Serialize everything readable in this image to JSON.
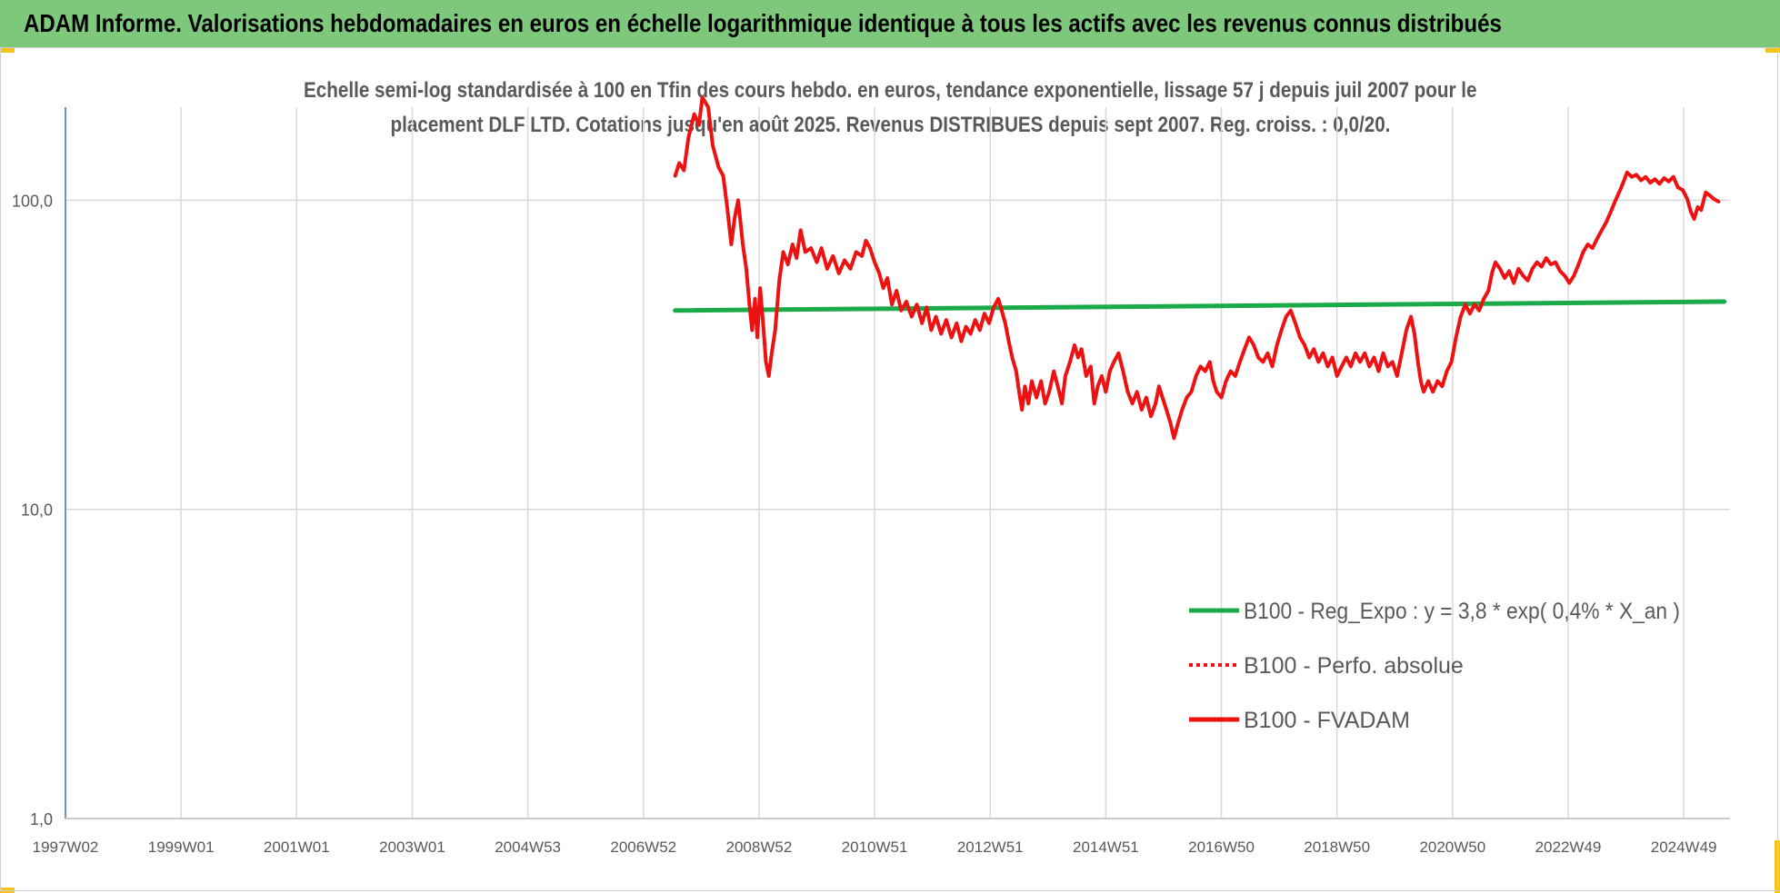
{
  "banner": {
    "title": "ADAM Informe. Valorisations hebdomadaires en euros en échelle logarithmique identique à tous les actifs avec les revenus connus distribués"
  },
  "colors": {
    "banner_bg": "#7dc87a",
    "corner_marks": "#f2c419",
    "fvadam_line": "#ee1111",
    "regression_line": "#1aaa4a",
    "axis_text": "#595959",
    "gridline": "#d9d9d9",
    "y_axis_line": "#4472c4"
  },
  "chart_data": {
    "type": "line",
    "title": "Echelle semi-log standardisée à 100 en Tfin des cours hebdo. en euros, tendance exponentielle, lissage 57 j depuis juil 2007 pour le",
    "subtitle": "placement DLF LTD. Cotations jusqu'en août 2025. Revenus DISTRIBUES depuis sept 2007. Reg. croiss. : 0,0/20.",
    "y_scale": "log",
    "ylim": [
      1,
      200
    ],
    "y_ticks": [
      {
        "value": 1,
        "label": "1,0"
      },
      {
        "value": 10,
        "label": "10,0"
      },
      {
        "value": 100,
        "label": "100,0"
      }
    ],
    "xlim": [
      1997.0,
      2025.8
    ],
    "x_ticks": [
      {
        "value": 1997.0,
        "label": "1997W02"
      },
      {
        "value": 1999.0,
        "label": "1999W01"
      },
      {
        "value": 2001.0,
        "label": "2001W01"
      },
      {
        "value": 2003.0,
        "label": "2003W01"
      },
      {
        "value": 2005.0,
        "label": "2004W53"
      },
      {
        "value": 2007.0,
        "label": "2006W52"
      },
      {
        "value": 2009.0,
        "label": "2008W52"
      },
      {
        "value": 2011.0,
        "label": "2010W51"
      },
      {
        "value": 2013.0,
        "label": "2012W51"
      },
      {
        "value": 2015.0,
        "label": "2014W51"
      },
      {
        "value": 2017.0,
        "label": "2016W50"
      },
      {
        "value": 2019.0,
        "label": "2018W50"
      },
      {
        "value": 2021.0,
        "label": "2020W50"
      },
      {
        "value": 2023.0,
        "label": "2022W49"
      },
      {
        "value": 2025.0,
        "label": "2024W49"
      }
    ],
    "legend_position": "right",
    "series": [
      {
        "name": "B100 - Reg_Expo : y = 3,8 * exp( 0,4% *  X_an )",
        "style": "solid",
        "points": [
          [
            2007.55,
            44
          ],
          [
            2025.7,
            47
          ]
        ]
      },
      {
        "name": "B100 - Perfo. absolue",
        "style": "dotted",
        "points": []
      },
      {
        "name": "B100 - FVADAM",
        "style": "solid",
        "points": [
          [
            2007.55,
            120
          ],
          [
            2007.62,
            132
          ],
          [
            2007.7,
            125
          ],
          [
            2007.78,
            160
          ],
          [
            2007.88,
            190
          ],
          [
            2007.96,
            175
          ],
          [
            2008.02,
            215
          ],
          [
            2008.12,
            200
          ],
          [
            2008.2,
            150
          ],
          [
            2008.3,
            128
          ],
          [
            2008.38,
            120
          ],
          [
            2008.45,
            95
          ],
          [
            2008.52,
            72
          ],
          [
            2008.58,
            88
          ],
          [
            2008.64,
            100
          ],
          [
            2008.72,
            72
          ],
          [
            2008.78,
            60
          ],
          [
            2008.84,
            45
          ],
          [
            2008.88,
            38
          ],
          [
            2008.93,
            48
          ],
          [
            2008.97,
            36
          ],
          [
            2009.02,
            52
          ],
          [
            2009.07,
            40
          ],
          [
            2009.12,
            30
          ],
          [
            2009.17,
            27
          ],
          [
            2009.22,
            32
          ],
          [
            2009.28,
            38
          ],
          [
            2009.35,
            55
          ],
          [
            2009.42,
            68
          ],
          [
            2009.5,
            62
          ],
          [
            2009.58,
            72
          ],
          [
            2009.65,
            65
          ],
          [
            2009.72,
            80
          ],
          [
            2009.8,
            68
          ],
          [
            2009.9,
            70
          ],
          [
            2010.0,
            63
          ],
          [
            2010.08,
            70
          ],
          [
            2010.18,
            60
          ],
          [
            2010.28,
            66
          ],
          [
            2010.38,
            58
          ],
          [
            2010.48,
            64
          ],
          [
            2010.58,
            60
          ],
          [
            2010.68,
            68
          ],
          [
            2010.78,
            66
          ],
          [
            2010.85,
            74
          ],
          [
            2010.92,
            70
          ],
          [
            2011.0,
            63
          ],
          [
            2011.08,
            58
          ],
          [
            2011.15,
            52
          ],
          [
            2011.22,
            56
          ],
          [
            2011.3,
            46
          ],
          [
            2011.38,
            51
          ],
          [
            2011.46,
            44
          ],
          [
            2011.55,
            47
          ],
          [
            2011.64,
            42
          ],
          [
            2011.73,
            46
          ],
          [
            2011.82,
            40
          ],
          [
            2011.9,
            45
          ],
          [
            2011.98,
            38
          ],
          [
            2012.06,
            42
          ],
          [
            2012.15,
            37
          ],
          [
            2012.24,
            41
          ],
          [
            2012.33,
            36
          ],
          [
            2012.42,
            40
          ],
          [
            2012.5,
            35
          ],
          [
            2012.58,
            39
          ],
          [
            2012.66,
            37
          ],
          [
            2012.74,
            41
          ],
          [
            2012.82,
            38
          ],
          [
            2012.9,
            43
          ],
          [
            2012.98,
            40
          ],
          [
            2013.06,
            45
          ],
          [
            2013.14,
            48
          ],
          [
            2013.2,
            44
          ],
          [
            2013.26,
            40
          ],
          [
            2013.32,
            35
          ],
          [
            2013.38,
            31
          ],
          [
            2013.45,
            28
          ],
          [
            2013.5,
            24
          ],
          [
            2013.55,
            21
          ],
          [
            2013.6,
            25
          ],
          [
            2013.66,
            22
          ],
          [
            2013.72,
            26
          ],
          [
            2013.8,
            23
          ],
          [
            2013.88,
            26
          ],
          [
            2013.95,
            22
          ],
          [
            2014.02,
            24
          ],
          [
            2014.1,
            28
          ],
          [
            2014.17,
            25
          ],
          [
            2014.24,
            22
          ],
          [
            2014.3,
            27
          ],
          [
            2014.38,
            30
          ],
          [
            2014.46,
            34
          ],
          [
            2014.52,
            31
          ],
          [
            2014.58,
            33
          ],
          [
            2014.66,
            27
          ],
          [
            2014.74,
            29
          ],
          [
            2014.8,
            22
          ],
          [
            2014.86,
            25
          ],
          [
            2014.93,
            27
          ],
          [
            2015.0,
            24
          ],
          [
            2015.07,
            28
          ],
          [
            2015.14,
            30
          ],
          [
            2015.22,
            32
          ],
          [
            2015.3,
            28
          ],
          [
            2015.38,
            24
          ],
          [
            2015.46,
            22
          ],
          [
            2015.54,
            24
          ],
          [
            2015.62,
            21
          ],
          [
            2015.7,
            23
          ],
          [
            2015.78,
            20
          ],
          [
            2015.86,
            22
          ],
          [
            2015.92,
            25
          ],
          [
            2015.98,
            23
          ],
          [
            2016.05,
            21
          ],
          [
            2016.12,
            19
          ],
          [
            2016.18,
            17
          ],
          [
            2016.25,
            19
          ],
          [
            2016.32,
            21
          ],
          [
            2016.4,
            23
          ],
          [
            2016.48,
            24
          ],
          [
            2016.56,
            27
          ],
          [
            2016.64,
            29
          ],
          [
            2016.72,
            28
          ],
          [
            2016.8,
            30
          ],
          [
            2016.86,
            26
          ],
          [
            2016.92,
            24
          ],
          [
            2017.0,
            23
          ],
          [
            2017.08,
            26
          ],
          [
            2017.16,
            28
          ],
          [
            2017.24,
            27
          ],
          [
            2017.32,
            30
          ],
          [
            2017.4,
            33
          ],
          [
            2017.48,
            36
          ],
          [
            2017.56,
            34
          ],
          [
            2017.64,
            31
          ],
          [
            2017.72,
            30
          ],
          [
            2017.8,
            32
          ],
          [
            2017.88,
            29
          ],
          [
            2017.96,
            34
          ],
          [
            2018.04,
            38
          ],
          [
            2018.12,
            42
          ],
          [
            2018.2,
            44
          ],
          [
            2018.28,
            40
          ],
          [
            2018.36,
            36
          ],
          [
            2018.44,
            34
          ],
          [
            2018.52,
            31
          ],
          [
            2018.6,
            33
          ],
          [
            2018.68,
            30
          ],
          [
            2018.76,
            32
          ],
          [
            2018.84,
            29
          ],
          [
            2018.92,
            31
          ],
          [
            2019.0,
            27
          ],
          [
            2019.08,
            29
          ],
          [
            2019.16,
            31
          ],
          [
            2019.24,
            29
          ],
          [
            2019.32,
            32
          ],
          [
            2019.4,
            30
          ],
          [
            2019.48,
            32
          ],
          [
            2019.56,
            29
          ],
          [
            2019.64,
            31
          ],
          [
            2019.72,
            28
          ],
          [
            2019.8,
            32
          ],
          [
            2019.88,
            29
          ],
          [
            2019.96,
            30
          ],
          [
            2020.04,
            27
          ],
          [
            2020.12,
            32
          ],
          [
            2020.2,
            38
          ],
          [
            2020.28,
            42
          ],
          [
            2020.34,
            37
          ],
          [
            2020.4,
            30
          ],
          [
            2020.45,
            26
          ],
          [
            2020.5,
            24
          ],
          [
            2020.58,
            26
          ],
          [
            2020.66,
            24
          ],
          [
            2020.74,
            26
          ],
          [
            2020.82,
            25
          ],
          [
            2020.9,
            28
          ],
          [
            2020.98,
            30
          ],
          [
            2021.06,
            36
          ],
          [
            2021.14,
            42
          ],
          [
            2021.22,
            46
          ],
          [
            2021.3,
            43
          ],
          [
            2021.38,
            46
          ],
          [
            2021.46,
            44
          ],
          [
            2021.54,
            48
          ],
          [
            2021.62,
            51
          ],
          [
            2021.68,
            58
          ],
          [
            2021.74,
            63
          ],
          [
            2021.82,
            60
          ],
          [
            2021.9,
            56
          ],
          [
            2021.98,
            59
          ],
          [
            2022.06,
            54
          ],
          [
            2022.14,
            60
          ],
          [
            2022.22,
            57
          ],
          [
            2022.3,
            55
          ],
          [
            2022.38,
            60
          ],
          [
            2022.46,
            63
          ],
          [
            2022.54,
            61
          ],
          [
            2022.62,
            65
          ],
          [
            2022.7,
            62
          ],
          [
            2022.78,
            63
          ],
          [
            2022.86,
            59
          ],
          [
            2022.94,
            57
          ],
          [
            2023.02,
            54
          ],
          [
            2023.1,
            57
          ],
          [
            2023.18,
            62
          ],
          [
            2023.26,
            68
          ],
          [
            2023.34,
            72
          ],
          [
            2023.42,
            70
          ],
          [
            2023.5,
            75
          ],
          [
            2023.58,
            80
          ],
          [
            2023.66,
            85
          ],
          [
            2023.74,
            92
          ],
          [
            2023.82,
            100
          ],
          [
            2023.9,
            108
          ],
          [
            2023.96,
            115
          ],
          [
            2024.02,
            123
          ],
          [
            2024.1,
            119
          ],
          [
            2024.18,
            121
          ],
          [
            2024.26,
            116
          ],
          [
            2024.34,
            119
          ],
          [
            2024.42,
            114
          ],
          [
            2024.5,
            117
          ],
          [
            2024.58,
            113
          ],
          [
            2024.66,
            118
          ],
          [
            2024.74,
            115
          ],
          [
            2024.82,
            119
          ],
          [
            2024.9,
            110
          ],
          [
            2024.98,
            108
          ],
          [
            2025.06,
            101
          ],
          [
            2025.12,
            92
          ],
          [
            2025.18,
            87
          ],
          [
            2025.24,
            95
          ],
          [
            2025.3,
            93
          ],
          [
            2025.38,
            106
          ],
          [
            2025.44,
            104
          ],
          [
            2025.52,
            101
          ],
          [
            2025.6,
            99
          ]
        ]
      }
    ]
  }
}
